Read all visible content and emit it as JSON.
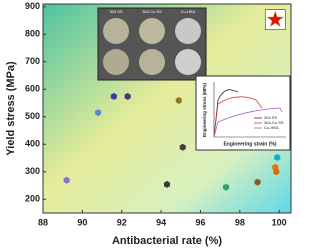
{
  "chart_data": {
    "type": "scatter",
    "x_label": "Antibacterial rate (%)",
    "y_label": "Yield stress (MPa)",
    "x": [
      89.2,
      90.8,
      91.6,
      92.3,
      94.3,
      94.9,
      95.1,
      97.3,
      98.9,
      99.8,
      99.85,
      99.9
    ],
    "y": [
      269,
      515,
      574,
      574,
      254,
      559,
      389,
      244,
      262,
      316,
      300,
      352
    ],
    "colors": [
      "#8a6fd6",
      "#5a86d8",
      "#3a3aa8",
      "#4a3a6a",
      "#3a3a3a",
      "#8a7a1a",
      "#4a3a3a",
      "#2aa860",
      "#8a5a20",
      "#e07a10",
      "#d86a10",
      "#20a8c8"
    ],
    "highlight": {
      "x": 99.8,
      "y": 853,
      "color": "#e01010"
    },
    "xlim": [
      88,
      100.6
    ],
    "ylim": [
      150,
      910
    ],
    "xticks": [
      88,
      90,
      92,
      94,
      96,
      98,
      100
    ],
    "yticks": [
      200,
      300,
      400,
      500,
      600,
      700,
      800,
      900
    ]
  },
  "insets": {
    "photo_columns": [
      "304 SS",
      "304-Cu SS",
      "Cu-HEA"
    ],
    "curve_x_label": "Engineering strain (%)",
    "curve_y_label": "Engineering stress (MPa)",
    "curve_legend": [
      {
        "name": "304 SS",
        "color": "#333333"
      },
      {
        "name": "304-Cu SS",
        "color": "#d04040"
      },
      {
        "name": "Cu-HEA",
        "color": "#a060c0"
      }
    ]
  }
}
